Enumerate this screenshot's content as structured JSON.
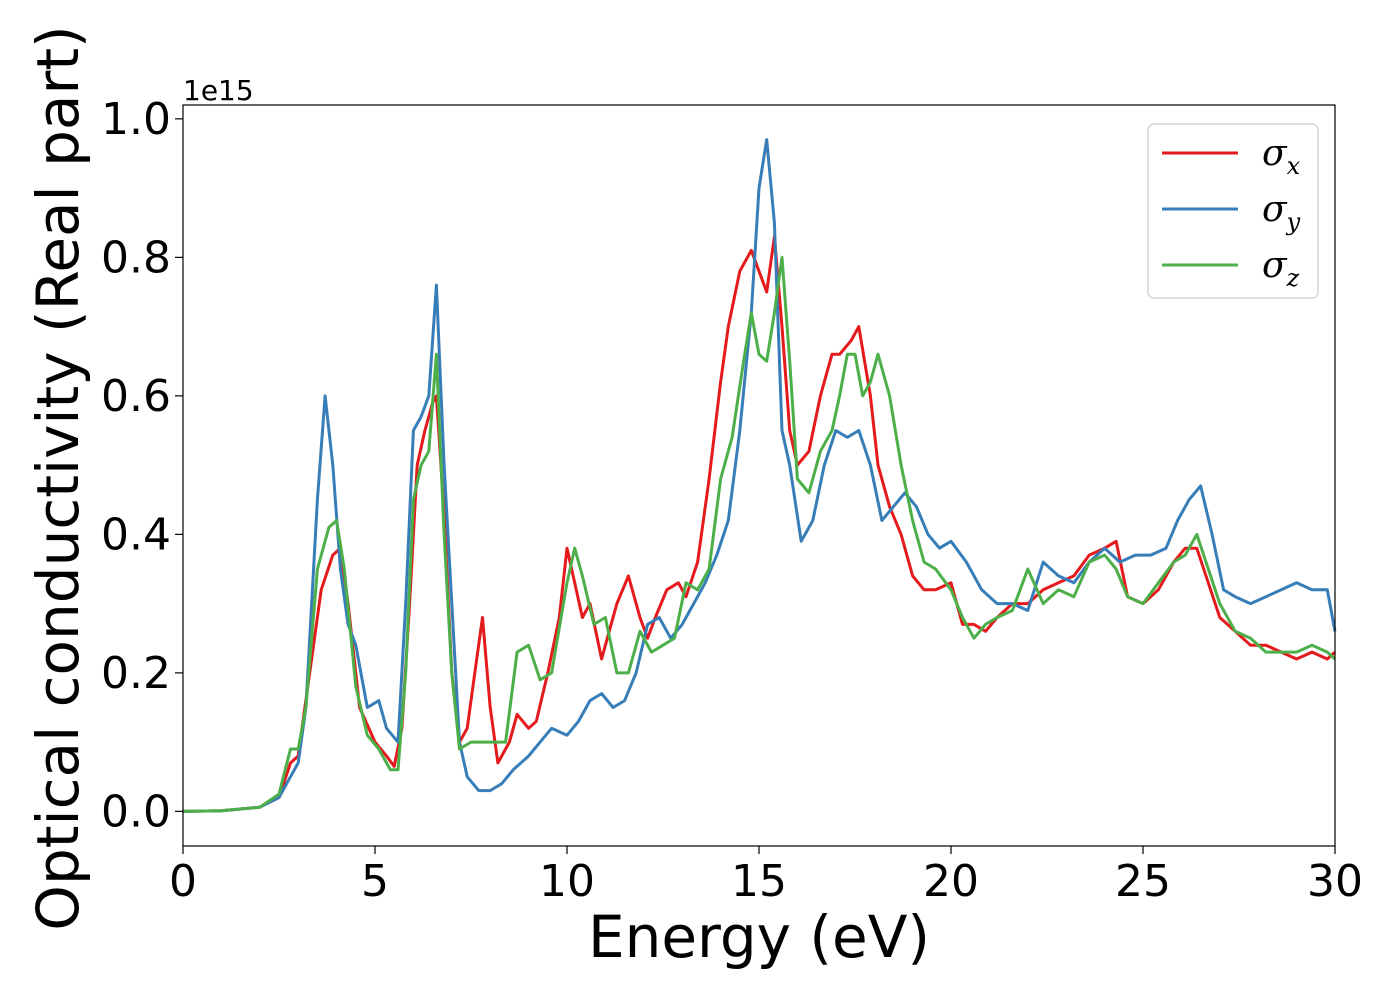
{
  "chart_data": {
    "type": "line",
    "title": "",
    "xlabel": "Energy (eV)",
    "ylabel": "Optical conductivity (Real part)",
    "y_offset_text": "1e15",
    "xlim": [
      0,
      30
    ],
    "ylim": [
      -0.05,
      1.02
    ],
    "xticks": [
      0,
      5,
      10,
      15,
      20,
      25,
      30
    ],
    "xtick_labels": [
      "0",
      "5",
      "10",
      "15",
      "20",
      "25",
      "30"
    ],
    "yticks": [
      0.0,
      0.2,
      0.4,
      0.6,
      0.8,
      1.0
    ],
    "ytick_labels": [
      "0.0",
      "0.2",
      "0.4",
      "0.6",
      "0.8",
      "1.0"
    ],
    "grid": false,
    "legend_position": "top-right",
    "series": [
      {
        "name": "σx",
        "legend_main": "σ",
        "legend_sub": "x",
        "color": "#e41a1c",
        "x": [
          0,
          1,
          2,
          2.5,
          2.8,
          3,
          3.3,
          3.6,
          3.9,
          4.1,
          4.3,
          4.6,
          5,
          5.3,
          5.5,
          5.7,
          5.9,
          6.1,
          6.3,
          6.5,
          6.6,
          6.8,
          7,
          7.2,
          7.4,
          7.6,
          7.8,
          8,
          8.2,
          8.5,
          8.7,
          9,
          9.2,
          9.5,
          9.8,
          10,
          10.2,
          10.4,
          10.6,
          10.9,
          11.1,
          11.3,
          11.6,
          11.9,
          12.1,
          12.3,
          12.6,
          12.9,
          13.1,
          13.4,
          13.7,
          14,
          14.2,
          14.5,
          14.8,
          15,
          15.2,
          15.4,
          15.6,
          15.8,
          16,
          16.3,
          16.6,
          16.9,
          17.1,
          17.4,
          17.6,
          17.9,
          18.1,
          18.4,
          18.7,
          19,
          19.3,
          19.6,
          20,
          20.3,
          20.6,
          20.9,
          21.2,
          21.6,
          22,
          22.4,
          22.8,
          23.2,
          23.6,
          24,
          24.3,
          24.6,
          25,
          25.4,
          25.8,
          26.1,
          26.4,
          26.7,
          27,
          27.4,
          27.8,
          28.2,
          28.6,
          29,
          29.4,
          29.8,
          30
        ],
        "y": [
          0,
          0.001,
          0.006,
          0.02,
          0.07,
          0.08,
          0.2,
          0.32,
          0.37,
          0.38,
          0.3,
          0.15,
          0.1,
          0.08,
          0.065,
          0.12,
          0.3,
          0.5,
          0.55,
          0.59,
          0.6,
          0.43,
          0.2,
          0.1,
          0.12,
          0.2,
          0.28,
          0.15,
          0.07,
          0.1,
          0.14,
          0.12,
          0.13,
          0.2,
          0.28,
          0.38,
          0.33,
          0.28,
          0.3,
          0.22,
          0.26,
          0.3,
          0.34,
          0.28,
          0.25,
          0.28,
          0.32,
          0.33,
          0.31,
          0.36,
          0.48,
          0.62,
          0.7,
          0.78,
          0.81,
          0.78,
          0.75,
          0.83,
          0.7,
          0.55,
          0.5,
          0.52,
          0.6,
          0.66,
          0.66,
          0.68,
          0.7,
          0.6,
          0.5,
          0.44,
          0.4,
          0.34,
          0.32,
          0.32,
          0.33,
          0.27,
          0.27,
          0.26,
          0.28,
          0.3,
          0.3,
          0.32,
          0.33,
          0.34,
          0.37,
          0.38,
          0.39,
          0.31,
          0.3,
          0.32,
          0.36,
          0.38,
          0.38,
          0.33,
          0.28,
          0.26,
          0.24,
          0.24,
          0.23,
          0.22,
          0.23,
          0.22,
          0.23
        ]
      },
      {
        "name": "σy",
        "legend_main": "σ",
        "legend_sub": "y",
        "color": "#377eb8",
        "x": [
          0,
          1,
          2,
          2.5,
          2.8,
          3,
          3.2,
          3.5,
          3.7,
          3.9,
          4.1,
          4.3,
          4.5,
          4.8,
          5.1,
          5.3,
          5.6,
          5.8,
          6,
          6.2,
          6.4,
          6.6,
          6.8,
          7,
          7.2,
          7.4,
          7.7,
          8,
          8.3,
          8.6,
          9,
          9.3,
          9.6,
          10,
          10.3,
          10.6,
          10.9,
          11.2,
          11.5,
          11.8,
          12.1,
          12.4,
          12.7,
          13,
          13.3,
          13.6,
          13.9,
          14.2,
          14.5,
          14.8,
          15,
          15.2,
          15.4,
          15.6,
          15.8,
          16.1,
          16.4,
          16.7,
          17,
          17.3,
          17.6,
          17.9,
          18.2,
          18.5,
          18.8,
          19.1,
          19.4,
          19.7,
          20,
          20.4,
          20.8,
          21.2,
          21.6,
          22,
          22.4,
          22.8,
          23.2,
          23.6,
          24,
          24.4,
          24.8,
          25.2,
          25.6,
          25.9,
          26.2,
          26.5,
          26.8,
          27.1,
          27.4,
          27.8,
          28.2,
          28.6,
          29,
          29.4,
          29.8,
          30
        ],
        "y": [
          0,
          0.001,
          0.006,
          0.02,
          0.05,
          0.07,
          0.15,
          0.45,
          0.6,
          0.5,
          0.35,
          0.27,
          0.24,
          0.15,
          0.16,
          0.12,
          0.1,
          0.3,
          0.55,
          0.57,
          0.6,
          0.76,
          0.5,
          0.3,
          0.1,
          0.05,
          0.03,
          0.03,
          0.04,
          0.06,
          0.08,
          0.1,
          0.12,
          0.11,
          0.13,
          0.16,
          0.17,
          0.15,
          0.16,
          0.2,
          0.27,
          0.28,
          0.25,
          0.27,
          0.3,
          0.33,
          0.37,
          0.42,
          0.55,
          0.72,
          0.9,
          0.97,
          0.85,
          0.55,
          0.5,
          0.39,
          0.42,
          0.5,
          0.55,
          0.54,
          0.55,
          0.5,
          0.42,
          0.44,
          0.46,
          0.44,
          0.4,
          0.38,
          0.39,
          0.36,
          0.32,
          0.3,
          0.3,
          0.29,
          0.36,
          0.34,
          0.33,
          0.36,
          0.38,
          0.36,
          0.37,
          0.37,
          0.38,
          0.42,
          0.45,
          0.47,
          0.4,
          0.32,
          0.31,
          0.3,
          0.31,
          0.32,
          0.33,
          0.32,
          0.32,
          0.26
        ]
      },
      {
        "name": "σz",
        "legend_main": "σ",
        "legend_sub": "z",
        "color": "#4daf4a",
        "x": [
          0,
          1,
          2,
          2.5,
          2.8,
          3,
          3.2,
          3.5,
          3.8,
          4,
          4.2,
          4.5,
          4.8,
          5.1,
          5.4,
          5.6,
          5.8,
          6,
          6.2,
          6.4,
          6.6,
          6.8,
          7,
          7.2,
          7.5,
          7.8,
          8.1,
          8.4,
          8.7,
          9,
          9.3,
          9.6,
          10,
          10.2,
          10.4,
          10.7,
          11,
          11.3,
          11.6,
          11.9,
          12.2,
          12.5,
          12.8,
          13.1,
          13.4,
          13.7,
          14,
          14.3,
          14.6,
          14.8,
          15,
          15.2,
          15.4,
          15.6,
          15.8,
          16,
          16.3,
          16.6,
          16.9,
          17.1,
          17.3,
          17.5,
          17.7,
          17.9,
          18.1,
          18.4,
          18.7,
          19,
          19.3,
          19.6,
          20,
          20.3,
          20.6,
          20.9,
          21.2,
          21.6,
          22,
          22.4,
          22.8,
          23.2,
          23.6,
          24,
          24.3,
          24.6,
          25,
          25.4,
          25.8,
          26.1,
          26.4,
          26.7,
          27,
          27.4,
          27.8,
          28.2,
          28.6,
          29,
          29.4,
          29.8,
          30
        ],
        "y": [
          0,
          0.001,
          0.006,
          0.025,
          0.09,
          0.09,
          0.15,
          0.35,
          0.41,
          0.42,
          0.35,
          0.18,
          0.11,
          0.09,
          0.06,
          0.06,
          0.2,
          0.45,
          0.5,
          0.52,
          0.66,
          0.4,
          0.2,
          0.09,
          0.1,
          0.1,
          0.1,
          0.1,
          0.23,
          0.24,
          0.19,
          0.2,
          0.33,
          0.38,
          0.34,
          0.27,
          0.28,
          0.2,
          0.2,
          0.26,
          0.23,
          0.24,
          0.25,
          0.33,
          0.32,
          0.35,
          0.48,
          0.54,
          0.65,
          0.72,
          0.66,
          0.65,
          0.72,
          0.8,
          0.65,
          0.48,
          0.46,
          0.52,
          0.55,
          0.6,
          0.66,
          0.66,
          0.6,
          0.62,
          0.66,
          0.6,
          0.5,
          0.42,
          0.36,
          0.35,
          0.32,
          0.28,
          0.25,
          0.27,
          0.28,
          0.29,
          0.35,
          0.3,
          0.32,
          0.31,
          0.36,
          0.37,
          0.35,
          0.31,
          0.3,
          0.33,
          0.36,
          0.37,
          0.4,
          0.35,
          0.3,
          0.26,
          0.25,
          0.23,
          0.23,
          0.23,
          0.24,
          0.23,
          0.22
        ]
      }
    ]
  }
}
